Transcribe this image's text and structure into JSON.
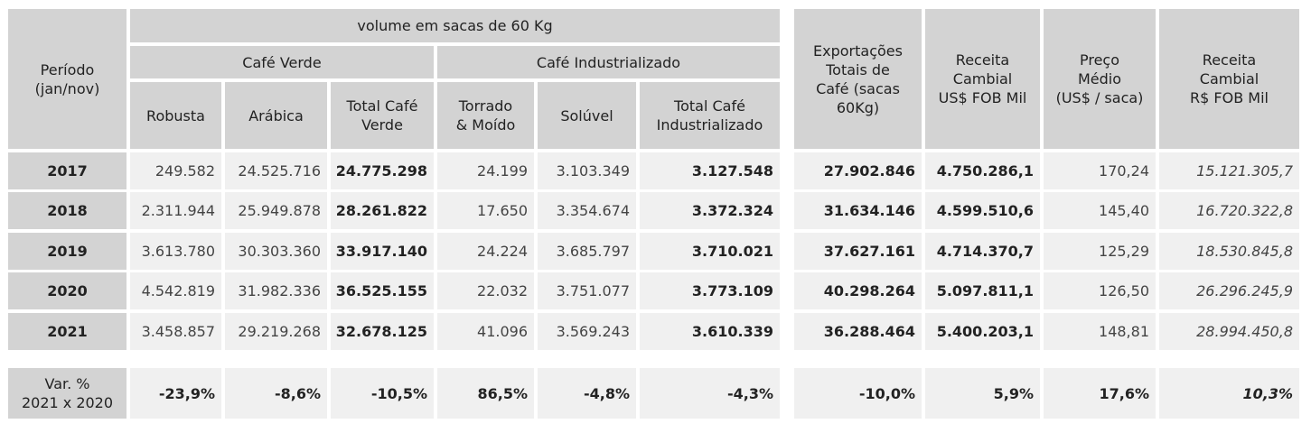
{
  "chart_data": {
    "type": "table",
    "header": {
      "volume_group": "volume em sacas de 60 Kg",
      "periodo": "Período\n(jan/nov)",
      "cafe_verde": "Café Verde",
      "cafe_industrializado": "Café Industrializado",
      "robusta": "Robusta",
      "arabica": "Arábica",
      "total_verde": "Total Café\nVerde",
      "torrado": "Torrado\n& Moído",
      "soluvel": "Solúvel",
      "total_industrializado": "Total Café\nIndustrializado",
      "exportacoes": "Exportações\nTotais de\nCafé (sacas\n60Kg)",
      "receita_usd": "Receita\nCambial\nUS$ FOB Mil",
      "preco_medio": "Preço\nMédio\n(US$ / saca)",
      "receita_brl": "Receita\nCambial\nR$ FOB Mil"
    },
    "rows": [
      {
        "year": "2017",
        "values": [
          "249.582",
          "24.525.716",
          "24.775.298",
          "24.199",
          "3.103.349",
          "3.127.548",
          "27.902.846",
          "4.750.286,1",
          "170,24",
          "15.121.305,7"
        ]
      },
      {
        "year": "2018",
        "values": [
          "2.311.944",
          "25.949.878",
          "28.261.822",
          "17.650",
          "3.354.674",
          "3.372.324",
          "31.634.146",
          "4.599.510,6",
          "145,40",
          "16.720.322,8"
        ]
      },
      {
        "year": "2019",
        "values": [
          "3.613.780",
          "30.303.360",
          "33.917.140",
          "24.224",
          "3.685.797",
          "3.710.021",
          "37.627.161",
          "4.714.370,7",
          "125,29",
          "18.530.845,8"
        ]
      },
      {
        "year": "2020",
        "values": [
          "4.542.819",
          "31.982.336",
          "36.525.155",
          "22.032",
          "3.751.077",
          "3.773.109",
          "40.298.264",
          "5.097.811,1",
          "126,50",
          "26.296.245,9"
        ]
      },
      {
        "year": "2021",
        "values": [
          "3.458.857",
          "29.219.268",
          "32.678.125",
          "41.096",
          "3.569.243",
          "3.610.339",
          "36.288.464",
          "5.400.203,1",
          "148,81",
          "28.994.450,8"
        ]
      }
    ],
    "variation": {
      "label": "Var. %\n2021 x 2020",
      "values": [
        "-23,9%",
        "-8,6%",
        "-10,5%",
        "86,5%",
        "-4,8%",
        "-4,3%",
        "-10,0%",
        "5,9%",
        "17,6%",
        "10,3%"
      ]
    }
  }
}
